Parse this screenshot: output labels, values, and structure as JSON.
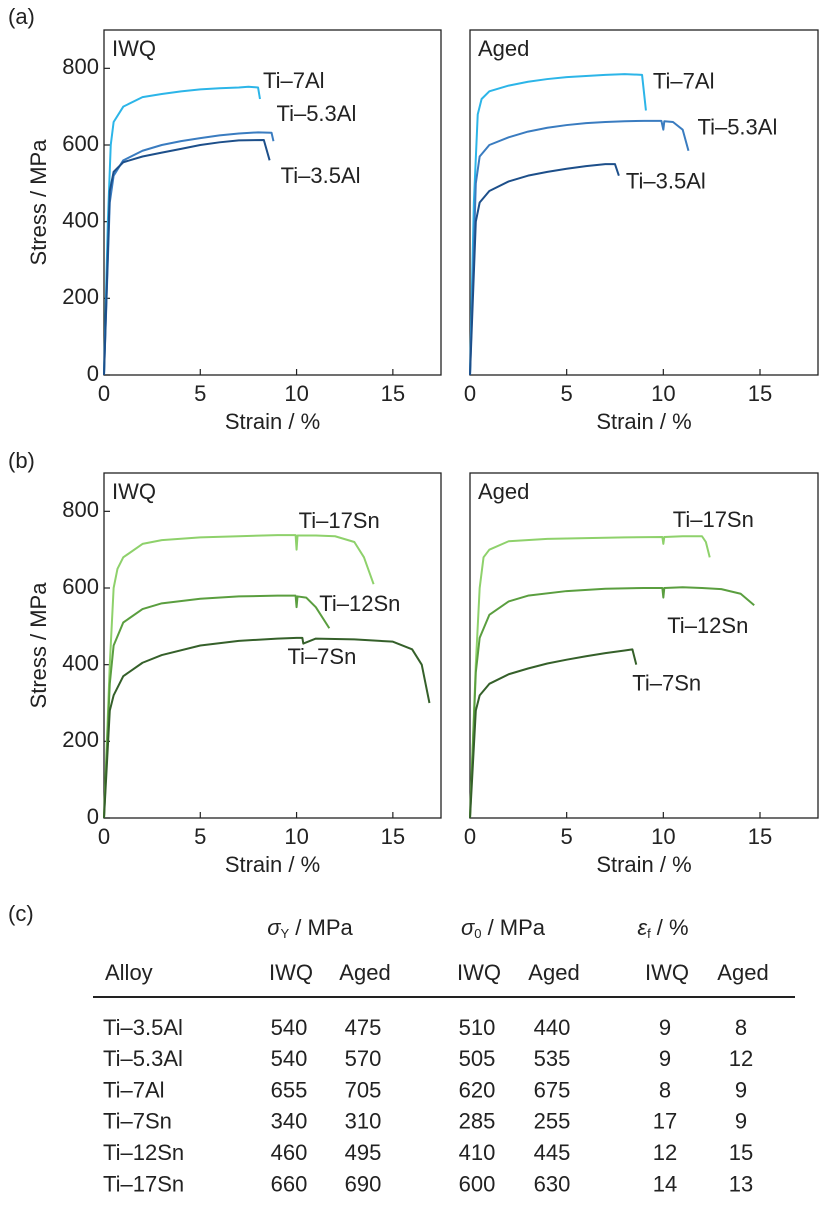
{
  "panel_labels": [
    "(a)",
    "(b)",
    "(c)"
  ],
  "chart_data": [
    {
      "type": "line",
      "title": "IWQ",
      "xlabel": "Strain / %",
      "ylabel": "Stress / MPa",
      "xlim": [
        0,
        17.5
      ],
      "ylim": [
        0,
        900
      ],
      "xticks": [
        0,
        5,
        10,
        15
      ],
      "yticks": [
        0,
        200,
        400,
        600,
        800
      ],
      "series": [
        {
          "name": "Ti–7Al",
          "color": "#2cb5e8",
          "x": [
            0,
            0.2,
            0.35,
            0.5,
            1,
            2,
            3,
            4,
            5,
            6,
            7,
            7.5,
            8.0,
            8.1
          ],
          "values": [
            0,
            400,
            600,
            660,
            700,
            725,
            733,
            740,
            745,
            748,
            750,
            752,
            750,
            720
          ]
        },
        {
          "name": "Ti–5.3Al",
          "color": "#3a7cc0",
          "x": [
            0,
            0.3,
            0.5,
            1,
            2,
            3,
            4,
            5,
            6,
            7,
            8,
            8.7,
            8.8
          ],
          "values": [
            0,
            450,
            520,
            560,
            585,
            600,
            610,
            618,
            625,
            630,
            633,
            632,
            610
          ]
        },
        {
          "name": "Ti–3.5Al",
          "color": "#1d4f8a",
          "x": [
            0,
            0.3,
            0.5,
            1,
            2,
            3,
            4,
            5,
            6,
            7,
            8.3,
            8.6
          ],
          "values": [
            0,
            480,
            530,
            555,
            570,
            580,
            590,
            600,
            607,
            612,
            613,
            560
          ]
        }
      ]
    },
    {
      "type": "line",
      "title": "Aged",
      "xlabel": "Strain / %",
      "xlim": [
        0,
        18
      ],
      "ylim": [
        0,
        900
      ],
      "xticks": [
        0,
        5,
        10,
        15
      ],
      "series": [
        {
          "name": "Ti–7Al",
          "color": "#2cb5e8",
          "x": [
            0,
            0.2,
            0.4,
            0.6,
            1,
            2,
            3,
            4,
            5,
            6,
            7,
            8,
            8.9,
            9.1
          ],
          "values": [
            0,
            450,
            680,
            720,
            740,
            755,
            765,
            772,
            777,
            780,
            783,
            785,
            783,
            690
          ]
        },
        {
          "name": "Ti–5.3Al",
          "color": "#3a7cc0",
          "x": [
            0,
            0.3,
            0.5,
            1,
            2,
            3,
            4,
            5,
            6,
            7,
            8,
            9,
            9.9,
            10,
            10.05,
            10.5,
            11,
            11.3
          ],
          "values": [
            0,
            500,
            570,
            600,
            620,
            635,
            645,
            652,
            657,
            660,
            662,
            663,
            663,
            640,
            662,
            660,
            640,
            585
          ]
        },
        {
          "name": "Ti–3.5Al",
          "color": "#1d4f8a",
          "x": [
            0,
            0.3,
            0.5,
            1,
            2,
            3,
            4,
            5,
            6,
            7,
            7.5,
            7.7
          ],
          "values": [
            0,
            400,
            450,
            480,
            505,
            520,
            530,
            538,
            545,
            550,
            550,
            520
          ]
        }
      ]
    },
    {
      "type": "line",
      "title": "IWQ",
      "xlabel": "Strain / %",
      "ylabel": "Stress / MPa",
      "xlim": [
        0,
        17.5
      ],
      "ylim": [
        0,
        900
      ],
      "xticks": [
        0,
        5,
        10,
        15
      ],
      "yticks": [
        0,
        200,
        400,
        600,
        800
      ],
      "series": [
        {
          "name": "Ti–17Sn",
          "color": "#8ed16b",
          "x": [
            0,
            0.3,
            0.5,
            0.7,
            1,
            2,
            3,
            5,
            7,
            9,
            9.95,
            10,
            10.05,
            11,
            12,
            13,
            13.5,
            14
          ],
          "values": [
            0,
            400,
            600,
            650,
            680,
            715,
            725,
            732,
            735,
            738,
            738,
            700,
            737,
            737,
            735,
            720,
            680,
            610
          ]
        },
        {
          "name": "Ti–12Sn",
          "color": "#5a9e3f",
          "x": [
            0,
            0.3,
            0.5,
            1,
            2,
            3,
            5,
            7,
            9,
            9.95,
            10,
            10.05,
            10.5,
            11,
            11.7
          ],
          "values": [
            0,
            350,
            450,
            510,
            545,
            560,
            572,
            578,
            580,
            580,
            550,
            578,
            575,
            550,
            495
          ]
        },
        {
          "name": "Ti–7Sn",
          "color": "#35602a",
          "x": [
            0,
            0.3,
            0.5,
            1,
            2,
            3,
            5,
            7,
            9,
            10,
            10.3,
            10.35,
            11,
            13,
            15,
            16,
            16.5,
            16.9
          ],
          "values": [
            0,
            280,
            320,
            370,
            405,
            425,
            450,
            462,
            468,
            470,
            470,
            455,
            468,
            466,
            460,
            440,
            400,
            300
          ]
        }
      ]
    },
    {
      "type": "line",
      "title": "Aged",
      "xlabel": "Strain / %",
      "xlim": [
        0,
        18
      ],
      "ylim": [
        0,
        900
      ],
      "xticks": [
        0,
        5,
        10,
        15
      ],
      "series": [
        {
          "name": "Ti–17Sn",
          "color": "#8ed16b",
          "x": [
            0,
            0.3,
            0.5,
            0.7,
            1,
            2,
            4,
            6,
            8,
            9.95,
            10,
            10.05,
            11,
            12,
            12.2,
            12.4
          ],
          "values": [
            0,
            400,
            600,
            680,
            700,
            722,
            728,
            730,
            732,
            733,
            715,
            733,
            735,
            735,
            720,
            680
          ]
        },
        {
          "name": "Ti–12Sn",
          "color": "#5a9e3f",
          "x": [
            0,
            0.3,
            0.5,
            1,
            2,
            3,
            5,
            7,
            9,
            9.95,
            10,
            10.05,
            11,
            12,
            13,
            14,
            14.7
          ],
          "values": [
            0,
            380,
            470,
            530,
            565,
            580,
            592,
            598,
            600,
            600,
            575,
            600,
            602,
            600,
            597,
            585,
            555
          ]
        },
        {
          "name": "Ti–7Sn",
          "color": "#35602a",
          "x": [
            0,
            0.3,
            0.5,
            1,
            2,
            3,
            4,
            5,
            6,
            7,
            8,
            8.4,
            8.6
          ],
          "values": [
            0,
            280,
            320,
            350,
            375,
            390,
            403,
            413,
            422,
            430,
            437,
            440,
            400
          ]
        }
      ]
    }
  ],
  "table": {
    "group_headers": [
      {
        "symbol": "σ",
        "sub": "Y",
        "rest": " / MPa"
      },
      {
        "symbol": "σ",
        "sub": "0",
        "rest": " / MPa"
      },
      {
        "symbol": "ε",
        "sub": "f",
        "rest": " / %"
      }
    ],
    "columns": [
      "Alloy",
      "IWQ",
      "Aged",
      "IWQ",
      "Aged",
      "IWQ",
      "Aged"
    ],
    "rows": [
      [
        "Ti–3.5Al",
        540,
        475,
        510,
        440,
        9,
        8
      ],
      [
        "Ti–5.3Al",
        540,
        570,
        505,
        535,
        9,
        12
      ],
      [
        "Ti–7Al",
        655,
        705,
        620,
        675,
        8,
        9
      ],
      [
        "Ti–7Sn",
        340,
        310,
        285,
        255,
        17,
        9
      ],
      [
        "Ti–12Sn",
        460,
        495,
        410,
        445,
        12,
        15
      ],
      [
        "Ti–17Sn",
        660,
        690,
        600,
        630,
        14,
        13
      ]
    ]
  }
}
